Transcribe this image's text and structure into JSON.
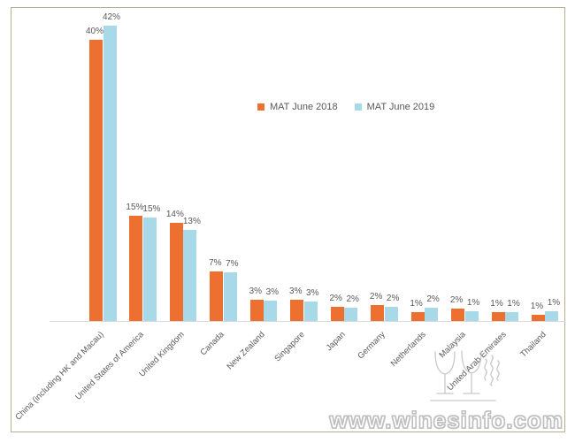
{
  "watermark": {
    "site_text": "www.winesinfo.com"
  },
  "frame": {
    "border_color": "#b5ae92"
  },
  "chart_data": {
    "type": "bar",
    "title": "",
    "xlabel": "",
    "ylabel": "",
    "ylim": [
      0,
      45
    ],
    "grid": false,
    "legend_position": "upper-center",
    "axis_line_color": "#d9d9d9",
    "label_color": "#595959",
    "categories": [
      "China (including HK and Macau)",
      "United States of America",
      "United Kingdom",
      "Canada",
      "New Zealand",
      "Singapore",
      "Japan",
      "Germany",
      "Netherlands",
      "Malaysia",
      "United Arab Emirates",
      "Thailand"
    ],
    "series": [
      {
        "name": "MAT June 2018",
        "color": "#ED7031",
        "values": [
          40,
          15,
          14,
          7,
          3,
          3,
          2,
          2,
          1,
          2,
          1,
          1
        ],
        "data_labels": [
          "40%",
          "15%",
          "14%",
          "7%",
          "3%",
          "3%",
          "2%",
          "2%",
          "1%",
          "2%",
          "1%",
          "1%"
        ],
        "display_heights_pct": [
          40,
          15,
          14,
          7,
          3,
          3,
          2,
          2.3,
          1.2,
          1.8,
          1.2,
          0.85
        ]
      },
      {
        "name": "MAT June 2019",
        "color": "#A7D9E9",
        "values": [
          42,
          15,
          13,
          7,
          3,
          3,
          2,
          2,
          2,
          1,
          1,
          1
        ],
        "data_labels": [
          "42%",
          "15%",
          "13%",
          "7%",
          "3%",
          "3%",
          "2%",
          "2%",
          "2%",
          "1%",
          "1%",
          "1%"
        ],
        "display_heights_pct": [
          42,
          14.7,
          13,
          6.9,
          2.9,
          2.8,
          1.85,
          2.0,
          1.9,
          1.35,
          1.3,
          1.35
        ]
      }
    ]
  }
}
